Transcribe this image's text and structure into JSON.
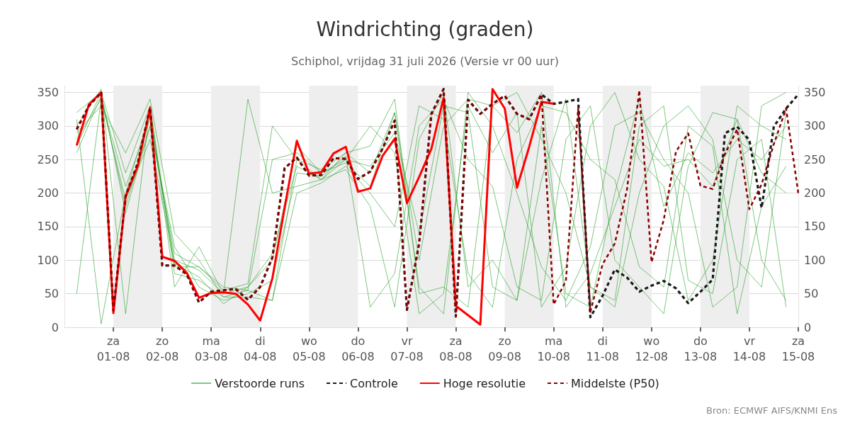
{
  "chart_data": {
    "type": "line",
    "title": "Windrichting (graden)",
    "subtitle": "Schiphol, vrijdag 31 juli 2026 (Versie vr 00 uur)",
    "x": [
      "2026-07-31T06:00",
      "2026-07-31T12:00",
      "2026-07-31T18:00",
      "2026-08-01T00:00",
      "2026-08-01T06:00",
      "2026-08-01T12:00",
      "2026-08-01T18:00",
      "2026-08-02T00:00",
      "2026-08-02T06:00",
      "2026-08-02T12:00",
      "2026-08-02T18:00",
      "2026-08-03T00:00",
      "2026-08-03T06:00",
      "2026-08-03T12:00",
      "2026-08-03T18:00",
      "2026-08-04T00:00",
      "2026-08-04T06:00",
      "2026-08-04T12:00",
      "2026-08-04T18:00",
      "2026-08-05T00:00",
      "2026-08-05T06:00",
      "2026-08-05T12:00",
      "2026-08-05T18:00",
      "2026-08-06T00:00",
      "2026-08-06T06:00",
      "2026-08-06T12:00",
      "2026-08-06T18:00",
      "2026-08-07T00:00",
      "2026-08-07T06:00",
      "2026-08-07T12:00",
      "2026-08-07T18:00",
      "2026-08-08T00:00",
      "2026-08-08T06:00",
      "2026-08-08T12:00",
      "2026-08-08T18:00",
      "2026-08-09T00:00",
      "2026-08-09T06:00",
      "2026-08-09T12:00",
      "2026-08-09T18:00",
      "2026-08-10T00:00",
      "2026-08-10T06:00",
      "2026-08-10T12:00",
      "2026-08-10T18:00",
      "2026-08-11T00:00",
      "2026-08-11T06:00",
      "2026-08-11T12:00",
      "2026-08-11T18:00",
      "2026-08-12T00:00",
      "2026-08-12T06:00",
      "2026-08-12T12:00",
      "2026-08-12T18:00",
      "2026-08-13T00:00",
      "2026-08-13T06:00",
      "2026-08-13T12:00",
      "2026-08-13T18:00",
      "2026-08-14T00:00",
      "2026-08-14T06:00",
      "2026-08-14T12:00",
      "2026-08-14T18:00",
      "2026-08-15T00:00"
    ],
    "series": [
      {
        "name": "Verstoorde runs",
        "color": "#2ca02c",
        "x": [
          "2026-07-31T06:00",
          "2026-07-31T18:00",
          "2026-08-01T06:00",
          "2026-08-01T18:00",
          "2026-08-02T06:00",
          "2026-08-02T18:00",
          "2026-08-03T06:00",
          "2026-08-03T18:00",
          "2026-08-04T06:00",
          "2026-08-04T18:00",
          "2026-08-05T06:00",
          "2026-08-05T18:00",
          "2026-08-06T06:00",
          "2026-08-06T18:00",
          "2026-08-07T06:00",
          "2026-08-07T18:00",
          "2026-08-08T06:00",
          "2026-08-08T18:00",
          "2026-08-09T06:00",
          "2026-08-09T18:00",
          "2026-08-10T06:00",
          "2026-08-10T18:00",
          "2026-08-11T06:00",
          "2026-08-11T18:00",
          "2026-08-12T06:00",
          "2026-08-12T18:00",
          "2026-08-13T06:00",
          "2026-08-13T18:00",
          "2026-08-14T06:00",
          "2026-08-14T18:00"
        ],
        "values": [
          280,
          340,
          210,
          310,
          100,
          85,
          50,
          60,
          110,
          240,
          220,
          250,
          240,
          290,
          140,
          330,
          320,
          60,
          40,
          300,
          50,
          30,
          200,
          340,
          180,
          260,
          230,
          280,
          250,
          300
        ]
      },
      {
        "color": "#2ca02c",
        "x": [
          "2026-07-31T06:00",
          "2026-07-31T18:00",
          "2026-08-01T06:00",
          "2026-08-01T18:00",
          "2026-08-02T06:00",
          "2026-08-02T18:00",
          "2026-08-03T06:00",
          "2026-08-03T18:00",
          "2026-08-04T06:00",
          "2026-08-04T18:00",
          "2026-08-05T06:00",
          "2026-08-05T18:00",
          "2026-08-06T06:00",
          "2026-08-06T18:00",
          "2026-08-07T06:00",
          "2026-08-07T18:00",
          "2026-08-08T06:00",
          "2026-08-08T18:00",
          "2026-08-09T06:00",
          "2026-08-09T18:00",
          "2026-08-10T06:00",
          "2026-08-10T18:00",
          "2026-08-11T06:00",
          "2026-08-11T18:00",
          "2026-08-12T06:00",
          "2026-08-12T18:00",
          "2026-08-13T06:00",
          "2026-08-13T18:00",
          "2026-08-14T06:00",
          "2026-08-14T18:00"
        ],
        "values": [
          300,
          355,
          20,
          330,
          80,
          70,
          45,
          55,
          250,
          260,
          230,
          245,
          210,
          320,
          60,
          20,
          350,
          300,
          200,
          90,
          40,
          120,
          300,
          320,
          250,
          200,
          30,
          60,
          330,
          350
        ]
      },
      {
        "color": "#2ca02c",
        "x": [
          "2026-07-31T06:00",
          "2026-07-31T18:00",
          "2026-08-01T06:00",
          "2026-08-01T18:00",
          "2026-08-02T06:00",
          "2026-08-02T18:00",
          "2026-08-03T06:00",
          "2026-08-03T18:00",
          "2026-08-04T06:00",
          "2026-08-04T18:00",
          "2026-08-05T06:00",
          "2026-08-05T18:00",
          "2026-08-06T06:00",
          "2026-08-06T18:00",
          "2026-08-07T06:00",
          "2026-08-07T18:00",
          "2026-08-08T06:00",
          "2026-08-08T18:00",
          "2026-08-09T06:00",
          "2026-08-09T18:00",
          "2026-08-10T06:00",
          "2026-08-10T18:00",
          "2026-08-11T06:00",
          "2026-08-11T18:00",
          "2026-08-12T06:00",
          "2026-08-12T18:00",
          "2026-08-13T06:00",
          "2026-08-13T18:00",
          "2026-08-14T06:00",
          "2026-08-14T18:00"
        ],
        "values": [
          260,
          345,
          180,
          300,
          120,
          60,
          40,
          50,
          70,
          230,
          225,
          255,
          30,
          80,
          300,
          340,
          250,
          210,
          60,
          40,
          280,
          330,
          100,
          60,
          20,
          240,
          320,
          310,
          100,
          40
        ]
      },
      {
        "color": "#2ca02c",
        "x": [
          "2026-07-31T06:00",
          "2026-07-31T18:00",
          "2026-08-01T06:00",
          "2026-08-01T18:00",
          "2026-08-02T06:00",
          "2026-08-02T18:00",
          "2026-08-03T06:00",
          "2026-08-03T18:00",
          "2026-08-04T06:00",
          "2026-08-04T18:00",
          "2026-08-05T06:00",
          "2026-08-05T18:00",
          "2026-08-06T06:00",
          "2026-08-06T18:00",
          "2026-08-07T06:00",
          "2026-08-07T18:00",
          "2026-08-08T06:00",
          "2026-08-08T18:00",
          "2026-08-09T06:00",
          "2026-08-09T18:00",
          "2026-08-10T06:00",
          "2026-08-10T18:00",
          "2026-08-11T06:00",
          "2026-08-11T18:00",
          "2026-08-12T06:00",
          "2026-08-12T18:00",
          "2026-08-13T06:00",
          "2026-08-13T18:00",
          "2026-08-14T06:00",
          "2026-08-14T18:00"
        ],
        "values": [
          310,
          5,
          200,
          320,
          90,
          90,
          55,
          65,
          300,
          250,
          220,
          260,
          270,
          340,
          50,
          60,
          30,
          330,
          350,
          280,
          200,
          60,
          40,
          300,
          330,
          70,
          50,
          250,
          280,
          30
        ]
      },
      {
        "color": "#2ca02c",
        "x": [
          "2026-07-31T06:00",
          "2026-07-31T18:00",
          "2026-08-01T06:00",
          "2026-08-01T18:00",
          "2026-08-02T06:00",
          "2026-08-02T18:00",
          "2026-08-03T06:00",
          "2026-08-03T18:00",
          "2026-08-04T06:00",
          "2026-08-04T18:00",
          "2026-08-05T06:00",
          "2026-08-05T18:00",
          "2026-08-06T06:00",
          "2026-08-06T18:00",
          "2026-08-07T06:00",
          "2026-08-07T18:00",
          "2026-08-08T06:00",
          "2026-08-08T18:00",
          "2026-08-09T06:00",
          "2026-08-09T18:00",
          "2026-08-10T06:00",
          "2026-08-10T18:00",
          "2026-08-11T06:00",
          "2026-08-11T18:00",
          "2026-08-12T06:00",
          "2026-08-12T18:00",
          "2026-08-13T06:00",
          "2026-08-13T18:00",
          "2026-08-14T06:00",
          "2026-08-14T18:00"
        ],
        "values": [
          290,
          330,
          260,
          340,
          140,
          100,
          45,
          45,
          40,
          200,
          215,
          240,
          200,
          150,
          330,
          310,
          80,
          30,
          250,
          330,
          320,
          250,
          220,
          90,
          60,
          300,
          270,
          20,
          180,
          240
        ]
      },
      {
        "color": "#2ca02c",
        "x": [
          "2026-07-31T06:00",
          "2026-07-31T18:00",
          "2026-08-01T06:00",
          "2026-08-01T18:00",
          "2026-08-02T06:00",
          "2026-08-02T18:00",
          "2026-08-03T06:00",
          "2026-08-03T18:00",
          "2026-08-04T06:00",
          "2026-08-04T18:00",
          "2026-08-05T06:00",
          "2026-08-05T18:00",
          "2026-08-06T06:00",
          "2026-08-06T18:00",
          "2026-08-07T06:00",
          "2026-08-07T18:00",
          "2026-08-08T06:00",
          "2026-08-08T18:00",
          "2026-08-09T06:00",
          "2026-08-09T18:00",
          "2026-08-10T06:00",
          "2026-08-10T18:00",
          "2026-08-11T06:00",
          "2026-08-11T18:00",
          "2026-08-12T06:00",
          "2026-08-12T18:00",
          "2026-08-13T06:00",
          "2026-08-13T18:00",
          "2026-08-14T06:00",
          "2026-08-14T18:00"
        ],
        "values": [
          50,
          340,
          190,
          280,
          95,
          75,
          35,
          60,
          100,
          270,
          230,
          250,
          300,
          260,
          20,
          50,
          330,
          260,
          320,
          30,
          90,
          300,
          350,
          250,
          210,
          40,
          100,
          330,
          300,
          280
        ]
      },
      {
        "color": "#2ca02c",
        "x": [
          "2026-07-31T06:00",
          "2026-07-31T18:00",
          "2026-08-01T06:00",
          "2026-08-01T18:00",
          "2026-08-02T06:00",
          "2026-08-02T18:00",
          "2026-08-03T06:00",
          "2026-08-03T18:00",
          "2026-08-04T06:00",
          "2026-08-04T18:00",
          "2026-08-05T06:00",
          "2026-08-05T18:00",
          "2026-08-06T06:00",
          "2026-08-06T18:00",
          "2026-08-07T06:00",
          "2026-08-07T18:00",
          "2026-08-08T06:00",
          "2026-08-08T18:00",
          "2026-08-09T06:00",
          "2026-08-09T18:00",
          "2026-08-10T06:00",
          "2026-08-10T18:00",
          "2026-08-11T06:00",
          "2026-08-11T18:00",
          "2026-08-12T06:00",
          "2026-08-12T18:00",
          "2026-08-13T06:00",
          "2026-08-13T18:00",
          "2026-08-14T06:00",
          "2026-08-14T18:00"
        ],
        "values": [
          270,
          350,
          230,
          330,
          60,
          120,
          50,
          340,
          200,
          210,
          220,
          235,
          180,
          30,
          280,
          350,
          60,
          100,
          40,
          220,
          340,
          60,
          30,
          200,
          300,
          330,
          280,
          100,
          60,
          320
        ]
      },
      {
        "color": "#2ca02c",
        "x": [
          "2026-07-31T06:00",
          "2026-07-31T18:00",
          "2026-08-01T06:00",
          "2026-08-01T18:00",
          "2026-08-02T06:00",
          "2026-08-02T18:00",
          "2026-08-03T06:00",
          "2026-08-03T18:00",
          "2026-08-04T06:00",
          "2026-08-04T18:00",
          "2026-08-05T06:00",
          "2026-08-05T18:00",
          "2026-08-06T06:00",
          "2026-08-06T18:00",
          "2026-08-07T06:00",
          "2026-08-07T18:00",
          "2026-08-08T06:00",
          "2026-08-08T18:00",
          "2026-08-09T06:00",
          "2026-08-09T18:00",
          "2026-08-10T06:00",
          "2026-08-10T18:00",
          "2026-08-11T06:00",
          "2026-08-11T18:00",
          "2026-08-12T06:00",
          "2026-08-12T18:00",
          "2026-08-13T06:00",
          "2026-08-13T18:00",
          "2026-08-14T06:00",
          "2026-08-14T18:00"
        ],
        "values": [
          320,
          350,
          170,
          300,
          110,
          90,
          60,
          55,
          40,
          250,
          235,
          260,
          230,
          320,
          100,
          300,
          340,
          330,
          290,
          350,
          30,
          80,
          180,
          280,
          240,
          250,
          210,
          310,
          230,
          200
        ]
      },
      {
        "name": "Controle",
        "color": "#1a1a1a",
        "line_style": "dashed",
        "values": [
          295,
          330,
          350,
          25,
          195,
          245,
          327,
          92,
          92,
          79,
          37,
          53,
          55,
          57,
          41,
          60,
          104,
          237,
          253,
          226,
          227,
          252,
          251,
          221,
          232,
          266,
          308,
          26,
          125,
          318,
          355,
          16,
          339,
          318,
          333,
          345,
          318,
          310,
          347,
          333,
          336,
          340,
          15,
          47,
          86,
          74,
          53,
          62,
          69,
          58,
          36,
          53,
          71,
          289,
          299,
          279,
          178,
          299,
          326,
          347
        ]
      },
      {
        "name": "Hoge resolutie",
        "color": "#ff0000",
        "line_style": "solid",
        "values": [
          271,
          332,
          350,
          21,
          195,
          241,
          327,
          105,
          99,
          81,
          44,
          51,
          52,
          50,
          34,
          10,
          73,
          178,
          278,
          229,
          231,
          259,
          269,
          202,
          207,
          255,
          281,
          185,
          224,
          266,
          342,
          32,
          18,
          4,
          355,
          326,
          208,
          269,
          336,
          333,
          null,
          null,
          null,
          null,
          null,
          null,
          null,
          null,
          null,
          null,
          null,
          null,
          null,
          null,
          null,
          null,
          null,
          null,
          null,
          null
        ]
      },
      {
        "name": "Middelste (P50)",
        "color": "#8b0000",
        "line_style": "dashed",
        "values": [
          295,
          330,
          350,
          25,
          195,
          245,
          327,
          92,
          92,
          79,
          37,
          53,
          55,
          57,
          41,
          60,
          104,
          237,
          253,
          226,
          227,
          252,
          251,
          221,
          232,
          266,
          308,
          26,
          125,
          318,
          355,
          16,
          339,
          318,
          333,
          345,
          318,
          310,
          347,
          34,
          69,
          326,
          23,
          94,
          125,
          206,
          353,
          97,
          160,
          262,
          289,
          211,
          206,
          258,
          295,
          176,
          213,
          273,
          326,
          200
        ]
      }
    ],
    "xlim": [
      "2026-07-31T00:00",
      "2026-08-15T00:00"
    ],
    "xticks": [
      {
        "value": "2026-08-01T00:00",
        "label": "za\n01-08"
      },
      {
        "value": "2026-08-02T00:00",
        "label": "zo\n02-08"
      },
      {
        "value": "2026-08-03T00:00",
        "label": "ma\n03-08"
      },
      {
        "value": "2026-08-04T00:00",
        "label": "di\n04-08"
      },
      {
        "value": "2026-08-05T00:00",
        "label": "wo\n05-08"
      },
      {
        "value": "2026-08-06T00:00",
        "label": "do\n06-08"
      },
      {
        "value": "2026-08-07T00:00",
        "label": "vr\n07-08"
      },
      {
        "value": "2026-08-08T00:00",
        "label": "za\n08-08"
      },
      {
        "value": "2026-08-09T00:00",
        "label": "zo\n09-08"
      },
      {
        "value": "2026-08-10T00:00",
        "label": "ma\n10-08"
      },
      {
        "value": "2026-08-11T00:00",
        "label": "di\n11-08"
      },
      {
        "value": "2026-08-12T00:00",
        "label": "wo\n12-08"
      },
      {
        "value": "2026-08-13T00:00",
        "label": "do\n13-08"
      },
      {
        "value": "2026-08-14T00:00",
        "label": "vr\n14-08"
      },
      {
        "value": "2026-08-15T00:00",
        "label": "za\n15-08"
      }
    ],
    "ylim": [
      0,
      360
    ],
    "yticks": [
      0,
      50,
      100,
      150,
      200,
      250,
      300,
      350
    ],
    "y2lim": [
      0,
      360
    ],
    "y2ticks": [
      0,
      50,
      100,
      150,
      200,
      250,
      300,
      350
    ],
    "bands": [
      {
        "axis": "x",
        "from": "2026-08-01T00:00",
        "to": "2026-08-02T00:00",
        "color": "#eeeeee"
      },
      {
        "axis": "x",
        "from": "2026-08-03T00:00",
        "to": "2026-08-04T00:00",
        "color": "#eeeeee"
      },
      {
        "axis": "x",
        "from": "2026-08-05T00:00",
        "to": "2026-08-06T00:00",
        "color": "#eeeeee"
      },
      {
        "axis": "x",
        "from": "2026-08-07T00:00",
        "to": "2026-08-08T00:00",
        "color": "#eeeeee"
      },
      {
        "axis": "x",
        "from": "2026-08-09T00:00",
        "to": "2026-08-10T00:00",
        "color": "#eeeeee"
      },
      {
        "axis": "x",
        "from": "2026-08-11T00:00",
        "to": "2026-08-12T00:00",
        "color": "#eeeeee"
      },
      {
        "axis": "x",
        "from": "2026-08-13T00:00",
        "to": "2026-08-14T00:00",
        "color": "#eeeeee"
      }
    ],
    "annotations": [
      "Bron: ECMWF AIFS/KNMI Ens"
    ],
    "grid": "y",
    "legend": "bottom",
    "marker": "none",
    "line_style": "solid"
  }
}
